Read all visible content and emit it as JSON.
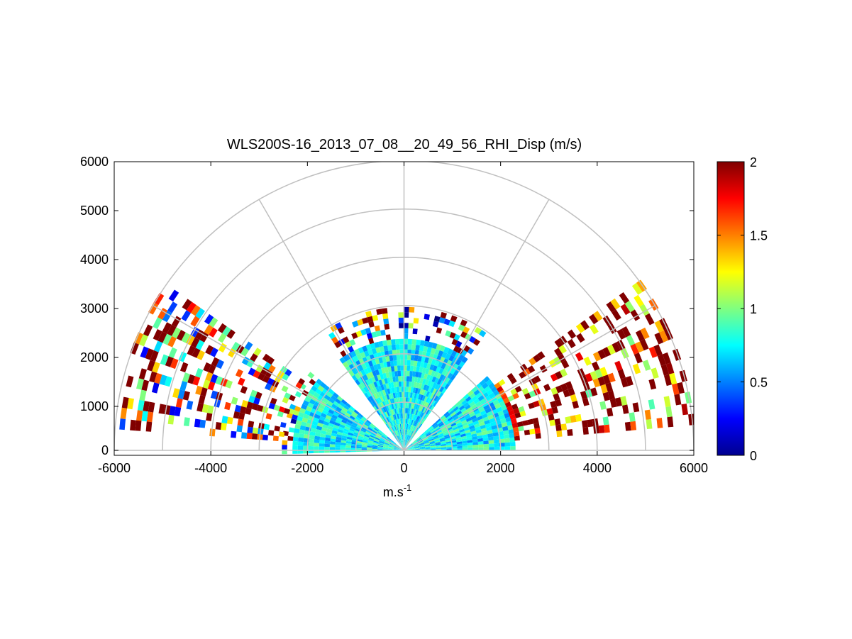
{
  "chart_data": {
    "type": "heatmap",
    "subtype": "polar-rhi",
    "title": "WLS200S-16_2013_07_08__20_49_56_RHI_Disp (m/s)",
    "xlabel_base": "m.s",
    "xlabel_sup": "-1",
    "xlim": [
      -6000,
      6000
    ],
    "ylim": [
      0,
      6000
    ],
    "xticks": [
      -6000,
      -4000,
      -2000,
      0,
      2000,
      4000,
      6000
    ],
    "yticks": [
      0,
      1000,
      2000,
      3000,
      4000,
      5000,
      6000
    ],
    "range_rings": [
      1000,
      2000,
      3000,
      4000,
      5000,
      6000
    ],
    "spoke_angles_deg": [
      0,
      30,
      60,
      90,
      120,
      150,
      180
    ],
    "colormap": "jet",
    "clim": [
      0,
      2
    ],
    "colorbar_ticks": [
      0,
      0.5,
      1,
      1.5,
      2
    ],
    "sectors": [
      {
        "az_range": [
          0,
          40
        ],
        "r_range": [
          0,
          2300
        ],
        "level": 0.75
      },
      {
        "az_range": [
          140,
          180
        ],
        "r_range": [
          0,
          2500
        ],
        "level": 0.75
      },
      {
        "az_range": [
          55,
          125
        ],
        "r_range": [
          0,
          2900
        ],
        "level": 0.75
      },
      {
        "az_range": [
          5,
          35
        ],
        "r_range": [
          2300,
          6000
        ],
        "level": 1.7
      },
      {
        "az_range": [
          145,
          175
        ],
        "r_range": [
          2500,
          6000
        ],
        "level": 1.0
      }
    ],
    "grid": true,
    "legend": "none"
  }
}
